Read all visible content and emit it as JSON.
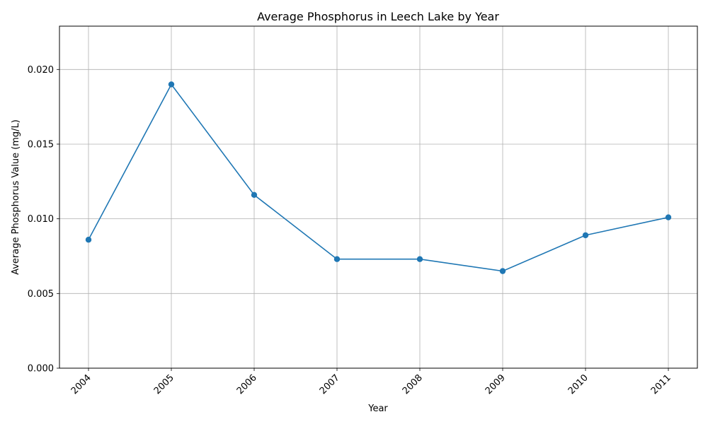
{
  "chart_data": {
    "type": "line",
    "title": "Average Phosphorus in Leech Lake by Year",
    "xlabel": "Year",
    "ylabel": "Average Phosphorus Value (mg/L)",
    "x": [
      "2004",
      "2005",
      "2006",
      "2007",
      "2008",
      "2009",
      "2010",
      "2011"
    ],
    "series": [
      {
        "values": [
          0.0086,
          0.019,
          0.0116,
          0.0073,
          0.0073,
          0.0065,
          0.0089,
          0.0101
        ]
      }
    ],
    "ylim": [
      0,
      0.0229
    ],
    "yticks": [
      "0.000",
      "0.005",
      "0.010",
      "0.015",
      "0.020"
    ],
    "ytick_values": [
      0,
      0.005,
      0.01,
      0.015,
      0.02
    ],
    "grid": true,
    "legend": "none",
    "colors": {
      "line": "#1f77b4",
      "grid": "#b0b0b0",
      "axis": "#000000"
    },
    "marker": "circle"
  }
}
